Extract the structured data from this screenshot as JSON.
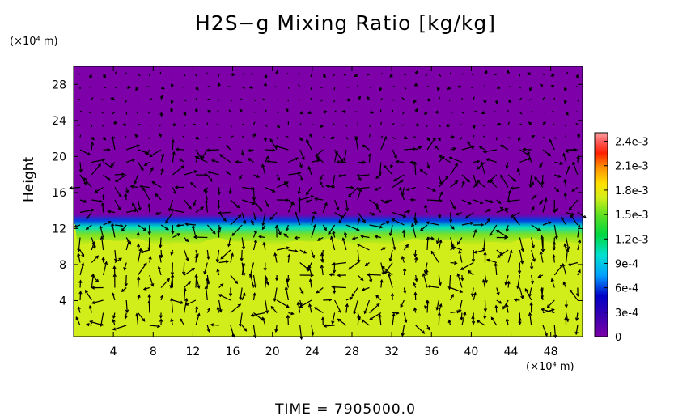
{
  "chart_data": {
    "type": "heatmap",
    "title": "H2S−g Mixing Ratio [kg/kg]",
    "ylabel": "Height",
    "x_unit": "(×10⁴ m)",
    "y_unit": "(×10⁴ m)",
    "x_ticks": [
      4,
      8,
      12,
      16,
      20,
      24,
      28,
      32,
      36,
      40,
      44,
      48
    ],
    "y_ticks": [
      4,
      8,
      12,
      16,
      20,
      24,
      28
    ],
    "xlim": [
      0,
      51.2
    ],
    "ylim": [
      0,
      30
    ],
    "colorbar": {
      "tick_labels": [
        "0",
        "3e-4",
        "6e-4",
        "9e-4",
        "1.2e-3",
        "1.5e-3",
        "1.8e-3",
        "2.1e-3",
        "2.4e-3"
      ],
      "range": [
        0,
        0.0026
      ]
    },
    "field": {
      "lower_layer_value": 0.00175,
      "upper_layer_value": 0,
      "interface_height": 12.5
    },
    "vectors": "wind velocity arrows overlaid on field",
    "footer": "TIME  =  7905000.0"
  },
  "colors": {
    "background": "#ffffff",
    "upper_region": "#7d00a8",
    "lower_region": "#d2ee1a"
  }
}
